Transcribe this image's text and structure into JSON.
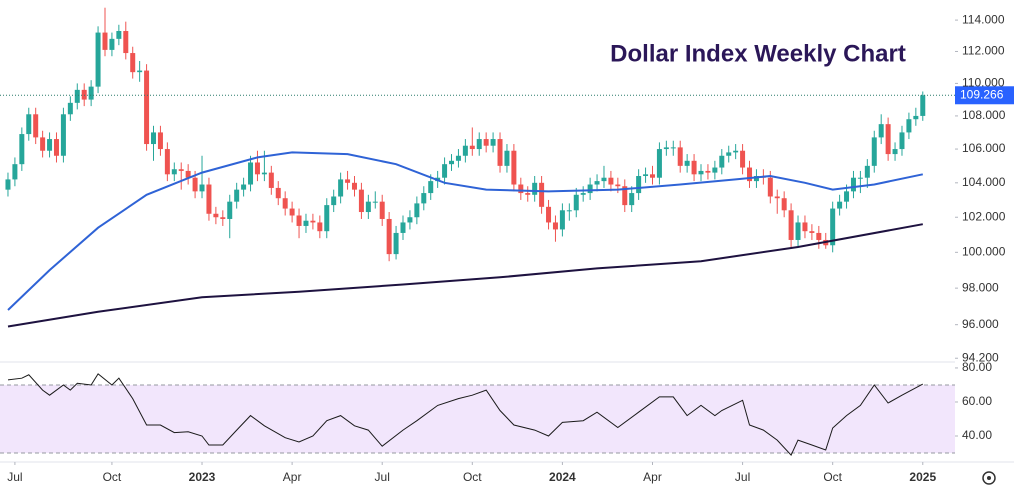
{
  "chart_data": [
    {
      "type": "candlestick",
      "title": "Dollar Index Weekly Chart",
      "log_scale": true,
      "up_color": "#26a69a",
      "down_color": "#ef5350",
      "xlim": [
        -1.15,
        136.65
      ],
      "ylim": [
        94.0,
        115.3
      ],
      "yticks": [
        {
          "value": 94.2,
          "label": "94.200"
        },
        {
          "value": 96,
          "label": "96.000"
        },
        {
          "value": 98,
          "label": "98.000"
        },
        {
          "value": 100,
          "label": "100.000"
        },
        {
          "value": 102,
          "label": "102.000"
        },
        {
          "value": 104,
          "label": "104.000"
        },
        {
          "value": 106,
          "label": "106.000"
        },
        {
          "value": 108,
          "label": "108.000"
        },
        {
          "value": 110,
          "label": "110.000"
        },
        {
          "value": 112,
          "label": "112.000"
        },
        {
          "value": 114,
          "label": "114.000"
        }
      ],
      "xticks": [
        {
          "value": 1,
          "label": "Jul"
        },
        {
          "value": 15,
          "label": "Oct"
        },
        {
          "value": 28,
          "label": "2023"
        },
        {
          "value": 41,
          "label": "Apr"
        },
        {
          "value": 54,
          "label": "Jul"
        },
        {
          "value": 67,
          "label": "Oct"
        },
        {
          "value": 80,
          "label": "2024"
        },
        {
          "value": 93,
          "label": "Apr"
        },
        {
          "value": 106,
          "label": "Jul"
        },
        {
          "value": 119,
          "label": "Oct"
        },
        {
          "value": 132,
          "label": "2025"
        }
      ],
      "open": [
        103.6,
        104.2,
        105.1,
        106.9,
        108.1,
        106.7,
        105.9,
        106.6,
        105.6,
        108.1,
        108.8,
        109.6,
        109.0,
        109.8,
        113.2,
        112.1,
        112.8,
        113.3,
        111.9,
        110.7,
        110.8,
        106.3,
        107.0,
        106.0,
        104.5,
        104.8,
        104.7,
        104.3,
        103.5,
        103.9,
        102.2,
        102.0,
        101.9,
        102.9,
        103.6,
        103.9,
        105.2,
        104.5,
        104.6,
        103.7,
        103.1,
        102.5,
        102.1,
        101.5,
        101.8,
        101.7,
        101.2,
        102.7,
        103.2,
        104.2,
        104.0,
        103.6,
        102.3,
        102.9,
        102.9,
        101.9,
        99.9,
        101.1,
        101.7,
        102.0,
        102.8,
        103.4,
        104.1,
        104.3,
        105.1,
        105.3,
        105.6,
        106.2,
        106.0,
        106.6,
        106.2,
        106.6,
        105.0,
        105.9,
        103.9,
        103.4,
        103.3,
        104.0,
        102.6,
        101.7,
        101.3,
        102.4,
        102.4,
        103.3,
        103.4,
        103.9,
        104.1,
        104.3,
        103.9,
        103.8,
        102.7,
        103.4,
        104.4,
        104.5,
        104.3,
        106.0,
        106.1,
        106.1,
        105.0,
        105.3,
        104.5,
        104.7,
        104.6,
        104.9,
        105.6,
        105.8,
        105.9,
        104.9,
        104.1,
        104.4,
        104.3,
        103.2,
        103.1,
        102.4,
        100.7,
        101.7,
        101.2,
        101.1,
        100.7,
        100.4,
        102.5,
        102.9,
        103.5,
        104.3,
        104.3,
        105.0,
        106.7,
        107.5,
        105.7,
        106.0,
        107.0,
        107.8,
        108.0
      ],
      "high": [
        104.6,
        105.5,
        107.3,
        108.5,
        108.5,
        107.1,
        107.0,
        107.0,
        108.5,
        109.2,
        110.0,
        110.0,
        110.2,
        113.6,
        114.8,
        113.2,
        113.7,
        113.9,
        112.3,
        111.4,
        111.2,
        107.4,
        107.4,
        106.4,
        105.2,
        105.2,
        105.1,
        104.7,
        105.6,
        104.3,
        102.6,
        102.4,
        103.3,
        104.0,
        104.3,
        105.6,
        105.9,
        105.9,
        105.0,
        104.1,
        103.5,
        102.9,
        102.5,
        102.2,
        102.2,
        102.1,
        103.1,
        103.6,
        104.6,
        104.7,
        104.4,
        104.0,
        103.3,
        103.5,
        103.3,
        102.3,
        101.5,
        102.1,
        102.4,
        103.2,
        103.8,
        104.5,
        104.7,
        105.5,
        105.7,
        106.0,
        106.6,
        107.3,
        107.0,
        107.0,
        107.0,
        107.0,
        106.3,
        106.3,
        104.3,
        103.8,
        104.4,
        104.4,
        103.0,
        102.1,
        102.8,
        102.8,
        103.7,
        103.8,
        104.3,
        104.5,
        105.0,
        104.7,
        104.3,
        104.2,
        103.8,
        104.8,
        104.9,
        105.0,
        106.4,
        106.5,
        106.5,
        106.5,
        105.7,
        105.7,
        105.1,
        105.1,
        105.3,
        106.0,
        106.2,
        106.3,
        106.3,
        105.3,
        104.8,
        104.8,
        104.7,
        103.6,
        103.5,
        102.8,
        102.1,
        102.1,
        101.6,
        101.5,
        101.1,
        102.9,
        103.3,
        103.9,
        104.7,
        104.7,
        105.4,
        107.1,
        108.1,
        107.9,
        106.4,
        107.4,
        108.2,
        108.5,
        109.5
      ],
      "low": [
        103.2,
        103.8,
        104.7,
        106.5,
        106.3,
        105.5,
        105.5,
        105.2,
        105.2,
        107.7,
        108.4,
        108.6,
        108.6,
        109.4,
        111.7,
        111.7,
        112.4,
        111.5,
        110.3,
        110.1,
        105.9,
        105.3,
        105.6,
        104.1,
        104.1,
        103.6,
        103.9,
        103.1,
        103.1,
        101.8,
        101.6,
        101.5,
        100.8,
        102.5,
        103.2,
        103.5,
        104.1,
        104.1,
        103.3,
        102.7,
        102.1,
        101.7,
        100.8,
        101.1,
        101.3,
        100.8,
        100.8,
        102.3,
        102.8,
        103.6,
        103.2,
        101.9,
        101.9,
        102.5,
        101.5,
        99.5,
        99.6,
        100.7,
        101.3,
        101.6,
        102.4,
        103.0,
        103.7,
        103.9,
        104.7,
        104.9,
        105.2,
        105.6,
        105.6,
        105.8,
        105.8,
        104.6,
        104.6,
        103.5,
        103.0,
        102.9,
        102.9,
        102.2,
        101.3,
        100.6,
        100.9,
        101.8,
        102.0,
        102.9,
        103.0,
        103.5,
        103.7,
        103.5,
        103.4,
        102.3,
        102.3,
        103.0,
        104.0,
        103.9,
        103.9,
        105.6,
        105.6,
        104.6,
        104.6,
        104.1,
        104.1,
        104.2,
        104.2,
        104.5,
        105.2,
        105.4,
        104.5,
        103.7,
        103.7,
        103.9,
        102.8,
        102.2,
        102.0,
        100.3,
        100.3,
        100.8,
        100.7,
        100.2,
        100.2,
        100.0,
        102.1,
        102.5,
        103.1,
        103.4,
        103.7,
        104.6,
        106.3,
        105.3,
        105.3,
        105.6,
        106.6,
        107.4,
        107.7
      ],
      "close": [
        104.2,
        105.1,
        106.9,
        108.1,
        106.7,
        105.9,
        106.6,
        105.6,
        108.1,
        108.8,
        109.6,
        109.0,
        109.8,
        113.2,
        112.1,
        112.8,
        113.3,
        111.9,
        110.7,
        110.8,
        106.3,
        107.0,
        106.0,
        104.5,
        104.8,
        104.7,
        104.3,
        103.5,
        103.9,
        102.2,
        102.0,
        101.9,
        102.9,
        103.6,
        103.9,
        105.2,
        104.5,
        104.6,
        103.7,
        103.1,
        102.5,
        102.1,
        101.5,
        101.8,
        101.7,
        101.2,
        102.7,
        103.2,
        104.2,
        104.0,
        103.6,
        102.3,
        102.9,
        102.9,
        101.9,
        99.9,
        101.1,
        101.7,
        102.0,
        102.8,
        103.4,
        104.1,
        104.3,
        105.1,
        105.3,
        105.6,
        106.2,
        106.0,
        106.6,
        106.2,
        106.6,
        105.0,
        105.9,
        103.9,
        103.4,
        103.3,
        104.0,
        102.6,
        101.7,
        101.3,
        102.4,
        102.4,
        103.3,
        103.4,
        103.9,
        104.1,
        104.3,
        103.9,
        103.8,
        102.7,
        103.4,
        104.4,
        104.5,
        104.3,
        106.0,
        106.1,
        106.1,
        105.0,
        105.3,
        104.5,
        104.7,
        104.6,
        104.9,
        105.6,
        105.8,
        105.9,
        104.9,
        104.1,
        104.4,
        104.3,
        103.2,
        103.1,
        102.4,
        100.7,
        101.7,
        101.2,
        101.1,
        100.7,
        100.4,
        102.5,
        102.9,
        103.5,
        104.3,
        104.3,
        105.0,
        106.7,
        107.5,
        105.7,
        106.0,
        107.0,
        107.8,
        108.0,
        109.266
      ],
      "last_color": "#2962ff",
      "lines": [
        {
          "color": "#2f63d6",
          "x": [
            0,
            6,
            13,
            20,
            28,
            36,
            41,
            49,
            56,
            63,
            69,
            78,
            88,
            97,
            105,
            110,
            115,
            119,
            125,
            132
          ],
          "values": [
            96.8,
            99.0,
            101.4,
            103.3,
            104.6,
            105.5,
            105.8,
            105.7,
            105.1,
            104.0,
            103.6,
            103.5,
            103.6,
            103.9,
            104.2,
            104.4,
            104.0,
            103.6,
            103.9,
            104.5
          ]
        },
        {
          "color": "#1e1240",
          "x": [
            0,
            13,
            28,
            42,
            57,
            71,
            85,
            100,
            114,
            132
          ],
          "values": [
            95.9,
            96.7,
            97.5,
            97.8,
            98.2,
            98.6,
            99.1,
            99.5,
            100.3,
            101.6
          ]
        }
      ]
    },
    {
      "type": "line",
      "color": "#1a1a1a",
      "xlim": [
        -1.15,
        136.65
      ],
      "ylim": [
        25.9,
        83.5
      ],
      "band": [
        30,
        70
      ],
      "band_color": "#f2e6fc",
      "yticks": [
        {
          "value": 40,
          "label": "40.00"
        },
        {
          "value": 60,
          "label": "60.00"
        },
        {
          "value": 80,
          "label": "80.00"
        }
      ],
      "x": [
        0,
        2,
        3,
        5,
        6,
        8,
        9,
        10,
        12,
        13,
        15,
        16,
        18,
        20,
        22,
        24,
        26,
        28,
        29,
        31,
        33,
        35,
        37,
        40,
        42,
        44,
        46,
        48,
        50,
        52,
        54,
        57,
        59,
        62,
        65,
        67,
        69,
        71,
        73,
        76,
        78,
        80,
        83,
        85,
        88,
        91,
        94,
        96,
        98,
        100,
        102,
        103,
        106,
        107,
        109,
        111,
        113,
        114,
        116,
        118,
        119,
        121,
        123,
        125,
        127,
        129,
        132
      ],
      "values": [
        73,
        74,
        76,
        67,
        64,
        70,
        67,
        71,
        70,
        76.5,
        70,
        74,
        62,
        46.5,
        46.5,
        42,
        42.5,
        40,
        34.7,
        34.7,
        43.5,
        52,
        46,
        39,
        36.5,
        40,
        49,
        52,
        46,
        43.5,
        34,
        43.5,
        49,
        58,
        62,
        64,
        67,
        55,
        46.5,
        43.5,
        40,
        48,
        49,
        54,
        45,
        54,
        63,
        63,
        52,
        58,
        52,
        55,
        61,
        46.5,
        43.5,
        37.6,
        28.8,
        37.6,
        34.7,
        31.8,
        44.7,
        52,
        58,
        70,
        59.4,
        64,
        70.5
      ]
    }
  ]
}
